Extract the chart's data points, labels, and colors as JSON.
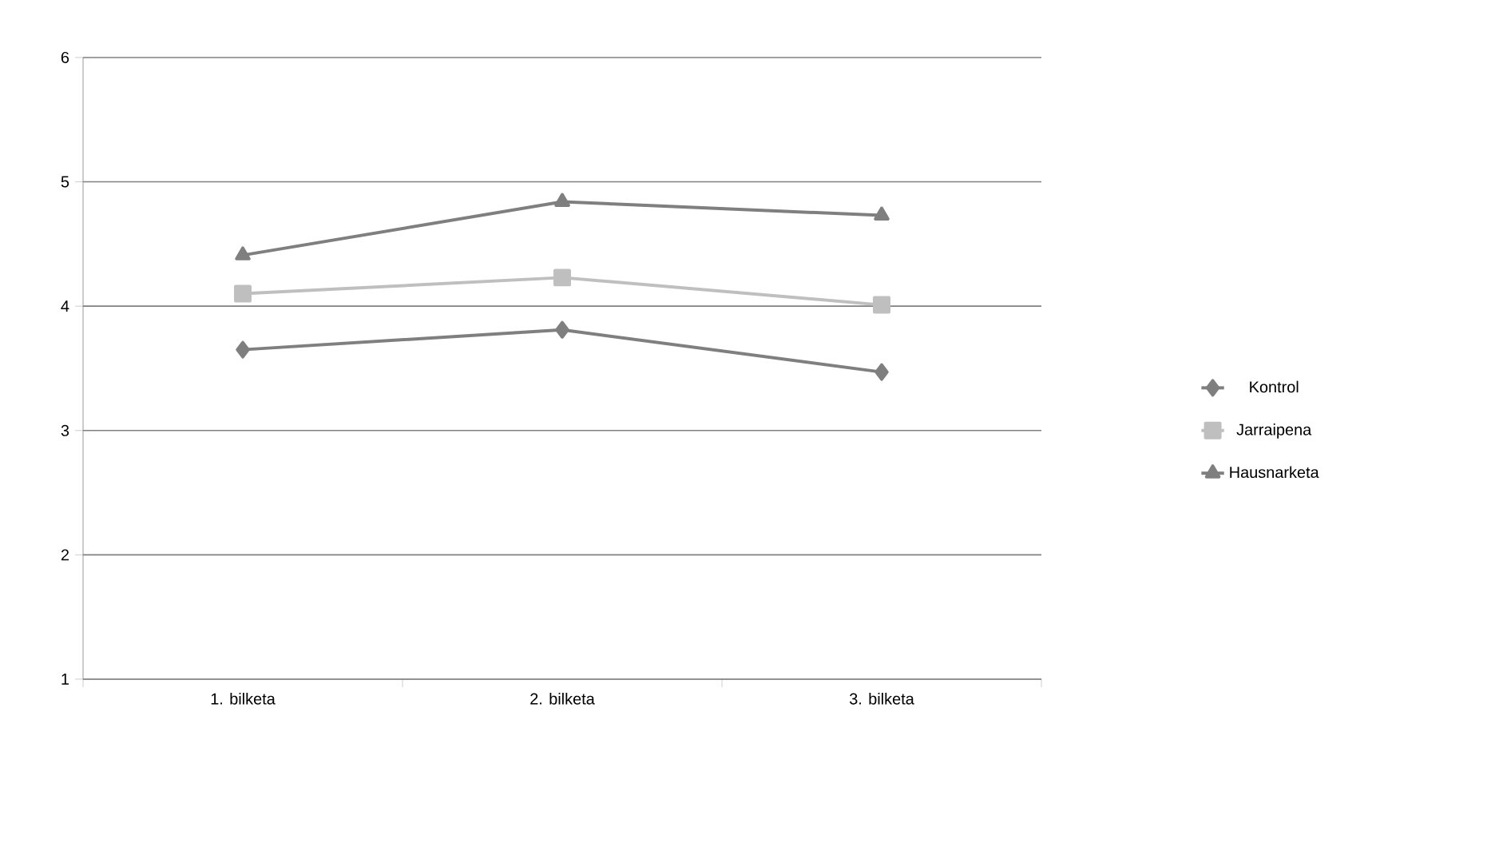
{
  "chart_data": {
    "type": "line",
    "categories": [
      "1. bilketa",
      "2. bilketa",
      "3. bilketa"
    ],
    "series": [
      {
        "name": "Kontrol",
        "color": "#7f7f7f",
        "marker": "diamond",
        "values": [
          3.65,
          3.81,
          3.47
        ]
      },
      {
        "name": "Jarraipena",
        "color": "#bfbfbf",
        "marker": "square",
        "values": [
          4.1,
          4.23,
          4.01
        ]
      },
      {
        "name": "Hausnarketa",
        "color": "#7f7f7f",
        "marker": "triangle",
        "values": [
          4.41,
          4.84,
          4.73
        ]
      }
    ],
    "ylim": [
      1,
      6
    ],
    "yticks": [
      1,
      2,
      3,
      4,
      5,
      6
    ],
    "grid": "y",
    "legend": "right",
    "line_style": "solid"
  }
}
